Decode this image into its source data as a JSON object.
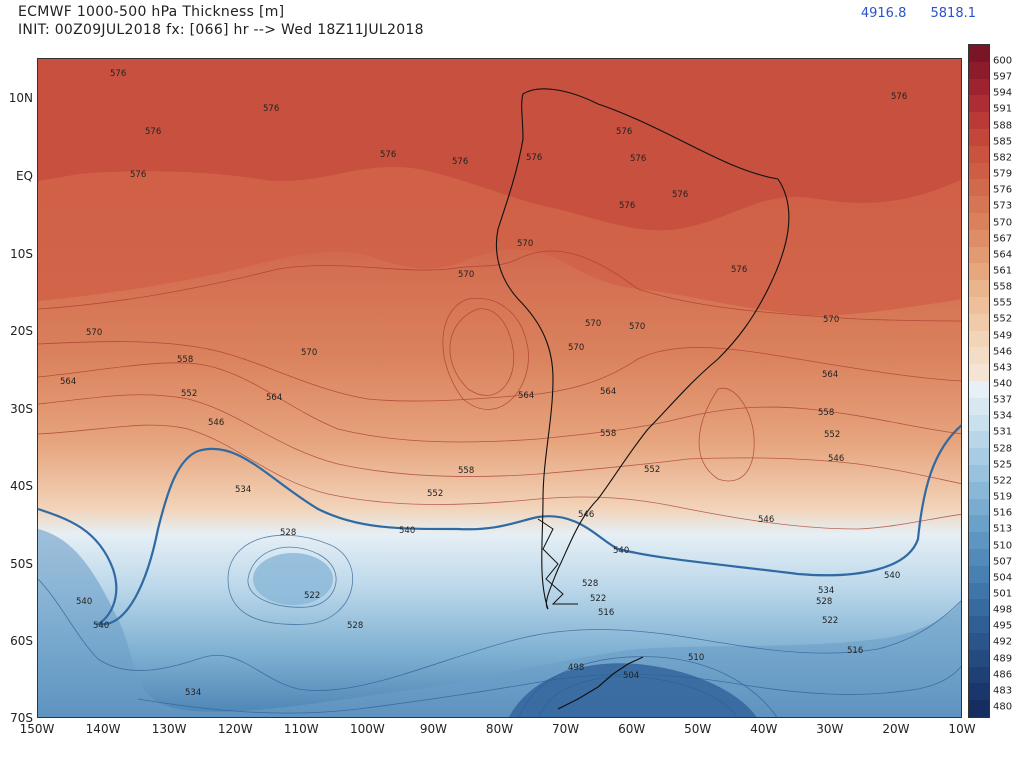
{
  "header": {
    "title": "ECMWF 1000-500 hPa Thickness [m]",
    "init": "INIT: 00Z09JUL2018 fx: [066] hr --> Wed 18Z11JUL2018"
  },
  "stats": {
    "min": "4916.8",
    "max": "5818.1"
  },
  "axes": {
    "lat_labels": [
      "10N",
      "EQ",
      "10S",
      "20S",
      "30S",
      "40S",
      "50S",
      "60S",
      "70S"
    ],
    "lon_labels": [
      "150W",
      "140W",
      "130W",
      "120W",
      "110W",
      "100W",
      "90W",
      "80W",
      "70W",
      "60W",
      "50W",
      "40W",
      "30W",
      "20W",
      "10W"
    ]
  },
  "colorbar": {
    "levels": [
      "600",
      "597",
      "594",
      "591",
      "588",
      "585",
      "582",
      "579",
      "576",
      "573",
      "570",
      "567",
      "564",
      "561",
      "558",
      "555",
      "552",
      "549",
      "546",
      "543",
      "540",
      "537",
      "534",
      "531",
      "528",
      "525",
      "522",
      "519",
      "516",
      "513",
      "510",
      "507",
      "504",
      "501",
      "498",
      "495",
      "492",
      "489",
      "486",
      "483",
      "480"
    ],
    "colors": [
      "#7a1526",
      "#8c1b2c",
      "#9d2330",
      "#ad2d34",
      "#b93a36",
      "#c2473a",
      "#c9533f",
      "#cd5e45",
      "#d1694c",
      "#d57553",
      "#da815c",
      "#de8d66",
      "#e29a72",
      "#e6a77e",
      "#eab48c",
      "#edc09b",
      "#f0cbaa",
      "#f2d5b8",
      "#f4ddc6",
      "#f5e4d3",
      "#e7f0f6",
      "#d8e8f2",
      "#c9e0ed",
      "#b9d6e8",
      "#a8cce3",
      "#98c2dd",
      "#88b7d7",
      "#79acd0",
      "#6ba1c9",
      "#5e96c1",
      "#528bb9",
      "#4880b1",
      "#3f75a8",
      "#376a9f",
      "#305f95",
      "#2a548a",
      "#244a80",
      "#1f4075",
      "#1a366a",
      "#162d60"
    ]
  },
  "map_labels": {
    "c576": "576",
    "c570": "570",
    "c564": "564",
    "c558": "558",
    "c552": "552",
    "c546": "546",
    "c540": "540",
    "c534": "534",
    "c528": "528",
    "c522": "522",
    "c516": "516",
    "c510": "510",
    "c504": "504",
    "c498": "498"
  }
}
